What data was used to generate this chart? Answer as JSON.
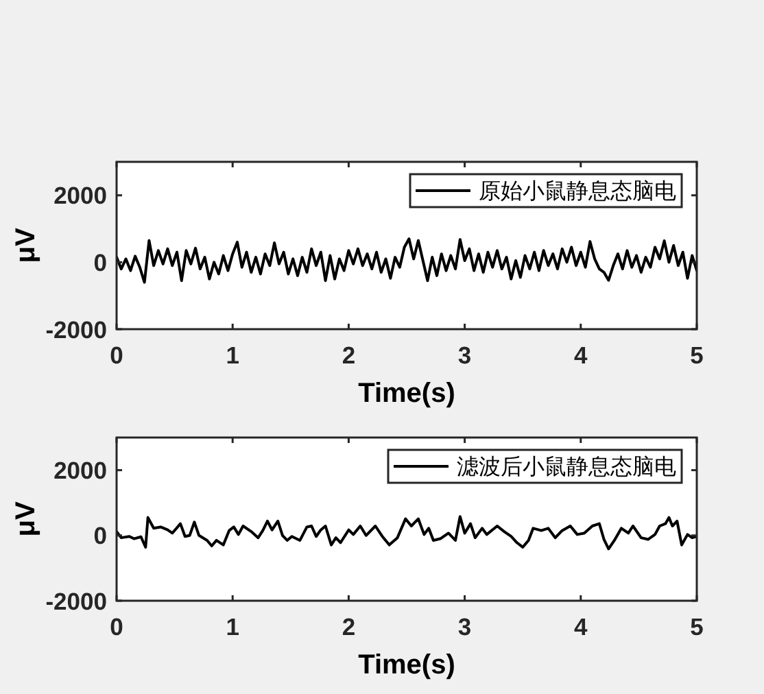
{
  "chart_data": [
    {
      "type": "line",
      "xlabel": "Time(s)",
      "ylabel": "μV",
      "xlim": [
        0,
        5
      ],
      "xticks": [
        0,
        1,
        2,
        3,
        4,
        5
      ],
      "ylim": [
        -2000,
        3000
      ],
      "yticks": [
        -2000,
        0,
        2000
      ],
      "legend": "top right",
      "series": [
        {
          "name": "原始小鼠静息态脑电",
          "color": "#000000",
          "x": [
            0,
            0.04,
            0.08,
            0.12,
            0.16,
            0.2,
            0.24,
            0.28,
            0.32,
            0.36,
            0.4,
            0.44,
            0.48,
            0.52,
            0.56,
            0.6,
            0.64,
            0.68,
            0.72,
            0.76,
            0.8,
            0.84,
            0.88,
            0.92,
            0.96,
            1,
            1.04,
            1.08,
            1.12,
            1.16,
            1.2,
            1.24,
            1.28,
            1.32,
            1.36,
            1.4,
            1.44,
            1.48,
            1.52,
            1.56,
            1.6,
            1.64,
            1.68,
            1.72,
            1.76,
            1.8,
            1.84,
            1.88,
            1.92,
            1.96,
            2,
            2.04,
            2.08,
            2.12,
            2.16,
            2.2,
            2.24,
            2.28,
            2.32,
            2.36,
            2.4,
            2.44,
            2.48,
            2.52,
            2.56,
            2.6,
            2.64,
            2.68,
            2.72,
            2.76,
            2.8,
            2.84,
            2.88,
            2.92,
            2.96,
            3,
            3.04,
            3.08,
            3.12,
            3.16,
            3.2,
            3.24,
            3.28,
            3.32,
            3.36,
            3.4,
            3.44,
            3.48,
            3.52,
            3.56,
            3.6,
            3.64,
            3.68,
            3.72,
            3.76,
            3.8,
            3.84,
            3.88,
            3.92,
            3.96,
            4,
            4.04,
            4.08,
            4.12,
            4.16,
            4.2,
            4.24,
            4.28,
            4.32,
            4.36,
            4.4,
            4.44,
            4.48,
            4.52,
            4.56,
            4.6,
            4.64,
            4.68,
            4.72,
            4.76,
            4.8,
            4.84,
            4.88,
            4.92,
            4.96,
            5
          ],
          "values": [
            150,
            -200,
            100,
            -250,
            180,
            -150,
            -600,
            650,
            -100,
            350,
            -50,
            400,
            -100,
            300,
            -550,
            350,
            -50,
            420,
            -200,
            150,
            -500,
            0,
            -350,
            200,
            -250,
            250,
            600,
            -150,
            300,
            -300,
            150,
            -350,
            250,
            -100,
            580,
            -50,
            300,
            -350,
            100,
            -400,
            150,
            -300,
            400,
            -100,
            300,
            -550,
            200,
            -500,
            100,
            -250,
            350,
            -50,
            400,
            -100,
            250,
            -200,
            300,
            -300,
            100,
            -480,
            150,
            -150,
            450,
            700,
            100,
            650,
            50,
            -550,
            150,
            -400,
            250,
            -250,
            200,
            -200,
            680,
            50,
            400,
            -250,
            250,
            -300,
            300,
            -150,
            350,
            -200,
            150,
            -500,
            50,
            -450,
            200,
            -200,
            300,
            -250,
            350,
            -100,
            250,
            -200,
            400,
            0,
            450,
            -100,
            300,
            -150,
            620,
            100,
            -200,
            -300,
            -540,
            -100,
            250,
            -200,
            350,
            -150,
            200,
            -300,
            150,
            -150,
            450,
            100,
            640,
            0,
            500,
            -100,
            300,
            -480,
            200,
            -250
          ]
        }
      ]
    },
    {
      "type": "line",
      "xlabel": "Time(s)",
      "ylabel": "μV",
      "xlim": [
        0,
        5
      ],
      "xticks": [
        0,
        1,
        2,
        3,
        4,
        5
      ],
      "ylim": [
        -2000,
        3000
      ],
      "yticks": [
        -2000,
        0,
        2000
      ],
      "legend": "top right",
      "series": [
        {
          "name": "滤波后小鼠静息态脑电",
          "color": "#000000",
          "x": [
            0,
            0.04,
            0.11,
            0.15,
            0.21,
            0.25,
            0.27,
            0.32,
            0.38,
            0.44,
            0.48,
            0.55,
            0.59,
            0.63,
            0.67,
            0.71,
            0.78,
            0.82,
            0.86,
            0.92,
            0.97,
            1.01,
            1.05,
            1.09,
            1.16,
            1.22,
            1.26,
            1.3,
            1.34,
            1.39,
            1.43,
            1.47,
            1.51,
            1.58,
            1.64,
            1.68,
            1.72,
            1.76,
            1.8,
            1.85,
            1.89,
            1.93,
            2,
            2.04,
            2.1,
            2.15,
            2.23,
            2.29,
            2.35,
            2.42,
            2.49,
            2.54,
            2.6,
            2.65,
            2.69,
            2.73,
            2.79,
            2.86,
            2.92,
            2.96,
            3,
            3.05,
            3.09,
            3.15,
            3.19,
            3.28,
            3.34,
            3.4,
            3.45,
            3.5,
            3.55,
            3.59,
            3.66,
            3.72,
            3.78,
            3.84,
            3.91,
            3.97,
            4.03,
            4.1,
            4.16,
            4.2,
            4.24,
            4.29,
            4.35,
            4.41,
            4.45,
            4.52,
            4.58,
            4.64,
            4.68,
            4.73,
            4.76,
            4.79,
            4.83,
            4.87,
            4.92,
            4.96,
            5
          ],
          "values": [
            120,
            -70,
            -30,
            -100,
            -40,
            -360,
            550,
            220,
            260,
            170,
            70,
            360,
            -30,
            0,
            410,
            0,
            -150,
            -320,
            -150,
            -290,
            150,
            260,
            30,
            290,
            120,
            -70,
            150,
            440,
            170,
            440,
            0,
            -150,
            -30,
            -150,
            260,
            290,
            -30,
            170,
            290,
            -290,
            -70,
            -220,
            170,
            30,
            290,
            0,
            290,
            -30,
            -290,
            -70,
            510,
            290,
            510,
            30,
            220,
            -150,
            -100,
            70,
            -150,
            580,
            70,
            360,
            -70,
            220,
            30,
            290,
            120,
            -30,
            -220,
            -360,
            -150,
            220,
            150,
            220,
            -70,
            150,
            290,
            30,
            70,
            290,
            360,
            -120,
            -410,
            -150,
            220,
            70,
            290,
            -70,
            -120,
            30,
            290,
            360,
            550,
            290,
            440,
            -290,
            30,
            -70,
            -30
          ]
        }
      ]
    }
  ]
}
